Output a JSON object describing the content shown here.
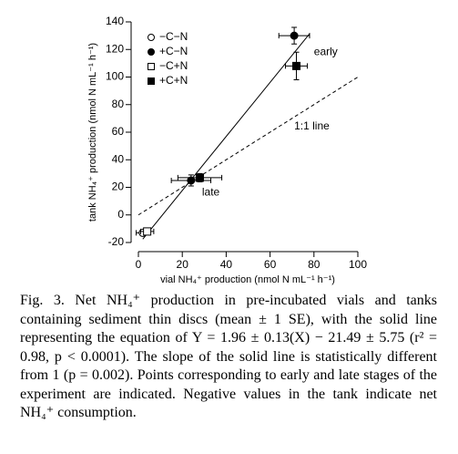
{
  "chart_data": {
    "type": "scatter",
    "xlabel": "vial NH₄⁺ production (nmol N mL⁻¹ h⁻¹)",
    "ylabel": "tank NH₄⁺ production (nmol N mL⁻¹ h⁻¹)",
    "xlim": [
      0,
      100
    ],
    "ylim": [
      -20,
      140
    ],
    "xticks": [
      0,
      20,
      40,
      60,
      80,
      100
    ],
    "yticks": [
      -20,
      0,
      20,
      40,
      60,
      80,
      100,
      120,
      140
    ],
    "legend": "top-left",
    "series": [
      {
        "name": "−C−N",
        "marker": "circle",
        "filled": false,
        "color": "#000000",
        "x": [
          2
        ],
        "values": [
          -13
        ],
        "xerr": [
          3
        ],
        "yerr": [
          1
        ]
      },
      {
        "name": "+C−N",
        "marker": "circle",
        "filled": true,
        "color": "#000000",
        "x": [
          71,
          24
        ],
        "values": [
          130,
          25
        ],
        "xerr": [
          7,
          9
        ],
        "yerr": [
          6,
          4
        ]
      },
      {
        "name": "−C+N",
        "marker": "square",
        "filled": false,
        "color": "#000000",
        "x": [
          4
        ],
        "values": [
          -12
        ],
        "xerr": [
          3
        ],
        "yerr": [
          1
        ]
      },
      {
        "name": "+C+N",
        "marker": "square",
        "filled": true,
        "color": "#000000",
        "x": [
          72,
          28
        ],
        "values": [
          108,
          27
        ],
        "xerr": [
          5,
          10
        ],
        "yerr": [
          10,
          3
        ]
      }
    ],
    "lines": [
      {
        "style": "solid",
        "x": [
          2,
          78
        ],
        "values": [
          -17.6,
          131.4
        ]
      },
      {
        "style": "dashed",
        "x": [
          0,
          100
        ],
        "values": [
          0,
          100
        ]
      }
    ],
    "annotations": [
      {
        "text": "early",
        "x": 80,
        "y": 118
      },
      {
        "text": "1:1 line",
        "x": 71,
        "y": 64
      },
      {
        "text": "late",
        "x": 29,
        "y": 16
      }
    ]
  },
  "caption": "Fig. 3. Net NH₄⁺ production in pre-incubated vials and tanks containing sediment thin discs (mean ± 1 SE), with the solid line representing the equation of Y = 1.96 ± 0.13(X) − 21.49 ± 5.75 (r² = 0.98, p < 0.0001). The slope of the solid line is statistically different from 1 (p = 0.002). Points corresponding to early and late stages of the experiment are indicated. Negative values in the tank indicate net NH₄⁺ consumption."
}
